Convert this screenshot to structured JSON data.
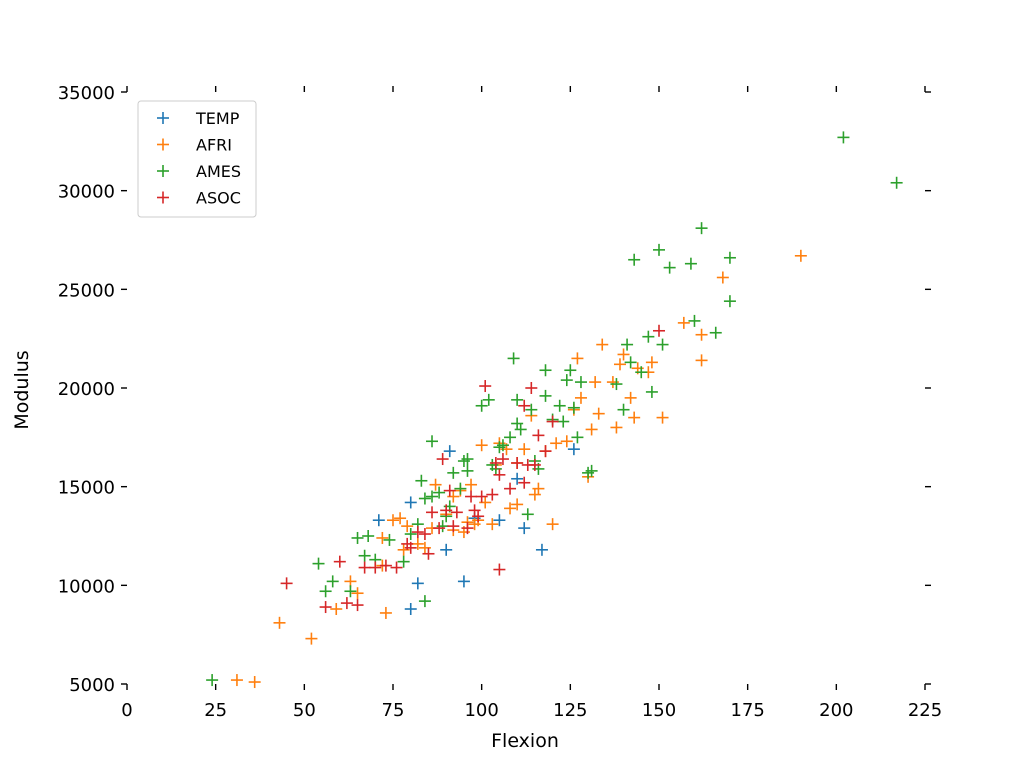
{
  "chart_data": {
    "type": "scatter",
    "title": "",
    "xlabel": "Flexion",
    "ylabel": "Modulus",
    "xlim": [
      0,
      225
    ],
    "ylim": [
      5000,
      35000
    ],
    "xticks": [
      0,
      25,
      50,
      75,
      100,
      125,
      150,
      175,
      200,
      225
    ],
    "yticks": [
      5000,
      10000,
      15000,
      20000,
      25000,
      30000,
      35000
    ],
    "grid": false,
    "legend_position": "top-left",
    "marker": "plus",
    "series": [
      {
        "name": "TEMP",
        "color": "#1f77b4",
        "points": [
          [
            71,
            13300
          ],
          [
            80,
            14200
          ],
          [
            80,
            8800
          ],
          [
            82,
            10100
          ],
          [
            90,
            11800
          ],
          [
            91,
            16800
          ],
          [
            95,
            10200
          ],
          [
            98,
            13400
          ],
          [
            105,
            13300
          ],
          [
            110,
            15400
          ],
          [
            112,
            12900
          ],
          [
            117,
            11800
          ],
          [
            126,
            16900
          ]
        ]
      },
      {
        "name": "AFRI",
        "color": "#ff7f0e",
        "points": [
          [
            31,
            5200
          ],
          [
            36,
            5100
          ],
          [
            43,
            8100
          ],
          [
            52,
            7300
          ],
          [
            59,
            8800
          ],
          [
            63,
            10200
          ],
          [
            65,
            9600
          ],
          [
            72,
            11000
          ],
          [
            73,
            8600
          ],
          [
            72,
            12400
          ],
          [
            75,
            13300
          ],
          [
            77,
            13400
          ],
          [
            78,
            11800
          ],
          [
            79,
            13000
          ],
          [
            82,
            12100
          ],
          [
            84,
            11900
          ],
          [
            86,
            12900
          ],
          [
            87,
            15100
          ],
          [
            90,
            13600
          ],
          [
            92,
            14500
          ],
          [
            92,
            12800
          ],
          [
            94,
            14800
          ],
          [
            95,
            12700
          ],
          [
            96,
            13200
          ],
          [
            97,
            15100
          ],
          [
            98,
            13100
          ],
          [
            99,
            13300
          ],
          [
            100,
            17100
          ],
          [
            101,
            14200
          ],
          [
            103,
            13100
          ],
          [
            104,
            16100
          ],
          [
            105,
            17200
          ],
          [
            107,
            16900
          ],
          [
            108,
            13900
          ],
          [
            110,
            14100
          ],
          [
            110,
            16200
          ],
          [
            112,
            16900
          ],
          [
            114,
            18600
          ],
          [
            115,
            14600
          ],
          [
            116,
            14900
          ],
          [
            118,
            16800
          ],
          [
            120,
            13100
          ],
          [
            121,
            17200
          ],
          [
            124,
            17300
          ],
          [
            126,
            18900
          ],
          [
            127,
            21500
          ],
          [
            128,
            19500
          ],
          [
            130,
            15500
          ],
          [
            131,
            17900
          ],
          [
            132,
            20300
          ],
          [
            133,
            18700
          ],
          [
            134,
            22200
          ],
          [
            137,
            20300
          ],
          [
            138,
            18000
          ],
          [
            139,
            21200
          ],
          [
            140,
            21700
          ],
          [
            142,
            19500
          ],
          [
            143,
            18500
          ],
          [
            144,
            21000
          ],
          [
            147,
            20800
          ],
          [
            148,
            21300
          ],
          [
            151,
            18500
          ],
          [
            157,
            23300
          ],
          [
            162,
            22700
          ],
          [
            162,
            21400
          ],
          [
            168,
            25600
          ],
          [
            190,
            26700
          ]
        ]
      },
      {
        "name": "AMES",
        "color": "#2ca02c",
        "points": [
          [
            24,
            5200
          ],
          [
            54,
            11100
          ],
          [
            56,
            9700
          ],
          [
            58,
            10200
          ],
          [
            63,
            9700
          ],
          [
            65,
            12400
          ],
          [
            67,
            11500
          ],
          [
            68,
            12500
          ],
          [
            70,
            11300
          ],
          [
            74,
            12300
          ],
          [
            78,
            11200
          ],
          [
            80,
            12600
          ],
          [
            82,
            13100
          ],
          [
            83,
            15300
          ],
          [
            84,
            14400
          ],
          [
            84,
            9200
          ],
          [
            86,
            17300
          ],
          [
            86,
            14500
          ],
          [
            88,
            14700
          ],
          [
            89,
            13000
          ],
          [
            90,
            13500
          ],
          [
            91,
            14000
          ],
          [
            92,
            15700
          ],
          [
            94,
            14900
          ],
          [
            95,
            16300
          ],
          [
            96,
            15800
          ],
          [
            96,
            16400
          ],
          [
            100,
            19100
          ],
          [
            102,
            19400
          ],
          [
            103,
            16100
          ],
          [
            104,
            15900
          ],
          [
            105,
            17000
          ],
          [
            106,
            17100
          ],
          [
            108,
            17500
          ],
          [
            109,
            21500
          ],
          [
            110,
            18200
          ],
          [
            110,
            19400
          ],
          [
            111,
            17900
          ],
          [
            113,
            13600
          ],
          [
            114,
            18900
          ],
          [
            115,
            16300
          ],
          [
            116,
            15900
          ],
          [
            118,
            19600
          ],
          [
            118,
            20900
          ],
          [
            120,
            18400
          ],
          [
            122,
            19100
          ],
          [
            123,
            18300
          ],
          [
            124,
            20400
          ],
          [
            125,
            20900
          ],
          [
            126,
            19000
          ],
          [
            127,
            17500
          ],
          [
            128,
            20300
          ],
          [
            130,
            15700
          ],
          [
            131,
            15800
          ],
          [
            138,
            20200
          ],
          [
            140,
            18900
          ],
          [
            141,
            22200
          ],
          [
            142,
            21300
          ],
          [
            143,
            26500
          ],
          [
            145,
            20800
          ],
          [
            147,
            22600
          ],
          [
            148,
            19800
          ],
          [
            150,
            27000
          ],
          [
            151,
            22200
          ],
          [
            153,
            26100
          ],
          [
            159,
            26300
          ],
          [
            160,
            23400
          ],
          [
            162,
            28100
          ],
          [
            166,
            22800
          ],
          [
            170,
            26600
          ],
          [
            170,
            24400
          ],
          [
            202,
            32700
          ],
          [
            217,
            30400
          ]
        ]
      },
      {
        "name": "ASOC",
        "color": "#d62728",
        "points": [
          [
            45,
            10100
          ],
          [
            56,
            8900
          ],
          [
            60,
            11200
          ],
          [
            62,
            9100
          ],
          [
            65,
            9000
          ],
          [
            67,
            10900
          ],
          [
            70,
            10900
          ],
          [
            73,
            11000
          ],
          [
            76,
            10900
          ],
          [
            79,
            12100
          ],
          [
            80,
            11900
          ],
          [
            82,
            12700
          ],
          [
            84,
            12600
          ],
          [
            85,
            11600
          ],
          [
            86,
            13700
          ],
          [
            88,
            12900
          ],
          [
            89,
            16400
          ],
          [
            90,
            13800
          ],
          [
            91,
            14800
          ],
          [
            92,
            13000
          ],
          [
            93,
            13700
          ],
          [
            96,
            12900
          ],
          [
            97,
            14500
          ],
          [
            98,
            13800
          ],
          [
            99,
            13500
          ],
          [
            100,
            14500
          ],
          [
            101,
            20100
          ],
          [
            103,
            14600
          ],
          [
            104,
            16200
          ],
          [
            105,
            10800
          ],
          [
            105,
            15600
          ],
          [
            106,
            16400
          ],
          [
            108,
            14900
          ],
          [
            110,
            16200
          ],
          [
            112,
            19100
          ],
          [
            112,
            15200
          ],
          [
            113,
            16100
          ],
          [
            114,
            20000
          ],
          [
            115,
            16100
          ],
          [
            116,
            17600
          ],
          [
            118,
            16800
          ],
          [
            120,
            18300
          ],
          [
            150,
            22900
          ]
        ]
      }
    ]
  }
}
